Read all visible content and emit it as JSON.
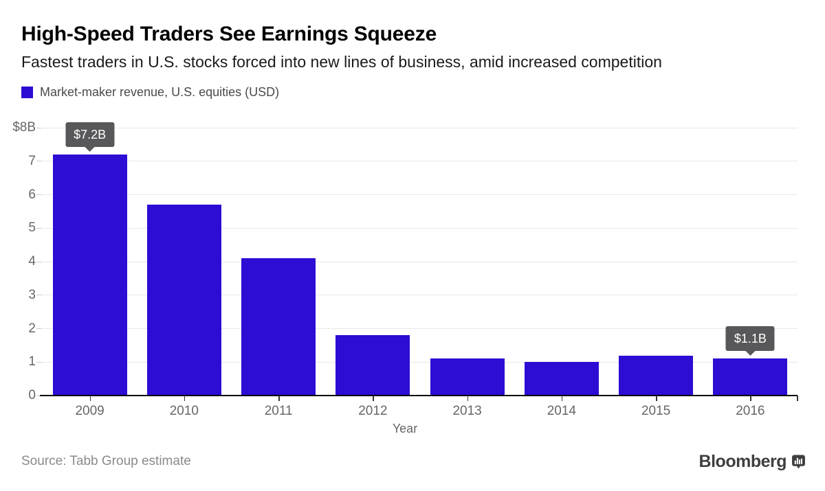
{
  "header": {
    "title": "High-Speed Traders See Earnings Squeeze",
    "subtitle": "Fastest traders in U.S. stocks forced into new lines of business, amid increased competition"
  },
  "legend": {
    "label": "Market-maker revenue, U.S. equities (USD)"
  },
  "chart_data": {
    "type": "bar",
    "title": "Market-maker revenue, U.S. equities (USD)",
    "categories": [
      "2009",
      "2010",
      "2011",
      "2012",
      "2013",
      "2014",
      "2015",
      "2016"
    ],
    "values": [
      7.2,
      5.7,
      4.1,
      1.8,
      1.1,
      1.0,
      1.2,
      1.1
    ],
    "xlabel": "Year",
    "ylabel": "",
    "ylim": [
      0,
      8
    ],
    "ytick_values": [
      0,
      1,
      2,
      3,
      4,
      5,
      6,
      7,
      8
    ],
    "ytick_labels": [
      "0",
      "1",
      "2",
      "3",
      "4",
      "5",
      "6",
      "7",
      "$8B"
    ],
    "grid": true,
    "legend_position": "top-left",
    "bar_color": "#2d0cd3",
    "callout_color": "#58585a",
    "callouts": [
      {
        "index": 0,
        "label": "$7.2B"
      },
      {
        "index": 7,
        "label": "$1.1B"
      }
    ]
  },
  "footer": {
    "source": "Source: Tabb Group estimate",
    "brand": "Bloomberg"
  }
}
